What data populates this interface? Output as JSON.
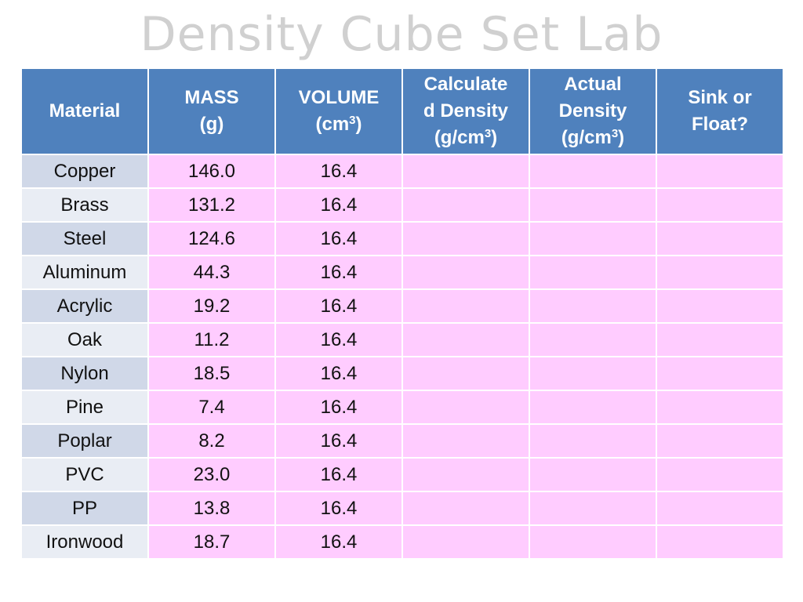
{
  "title": "Density Cube Set Lab",
  "colors": {
    "header_bg": "#4F81BD",
    "header_text": "#FFFFFF",
    "material_dark": "#D0D8E8",
    "material_light": "#E9EDF4",
    "data_cell": "#FFCCFF",
    "title_text": "#D0D0D0"
  },
  "table": {
    "headers": [
      {
        "line1": "Material",
        "line2": "",
        "line3": ""
      },
      {
        "line1": "MASS",
        "line2": "(g)",
        "line3": ""
      },
      {
        "line1": "VOLUME",
        "line2_pre": "(cm",
        "line2_sup": "3",
        "line2_post": ")"
      },
      {
        "line1": "Calculate",
        "line2": "d Density",
        "line3_pre": "(g/cm",
        "line3_sup": "3",
        "line3_post": ")"
      },
      {
        "line1": "Actual",
        "line2": "Density",
        "line3_pre": "(g/cm",
        "line3_sup": "3",
        "line3_post": ")"
      },
      {
        "line1": "Sink or",
        "line2": "Float?"
      }
    ],
    "rows": [
      {
        "material": "Copper",
        "mass": "146.0",
        "volume": "16.4",
        "calculated_density": "",
        "actual_density": "",
        "sink_or_float": ""
      },
      {
        "material": "Brass",
        "mass": "131.2",
        "volume": "16.4",
        "calculated_density": "",
        "actual_density": "",
        "sink_or_float": ""
      },
      {
        "material": "Steel",
        "mass": "124.6",
        "volume": "16.4",
        "calculated_density": "",
        "actual_density": "",
        "sink_or_float": ""
      },
      {
        "material": "Aluminum",
        "mass": "44.3",
        "volume": "16.4",
        "calculated_density": "",
        "actual_density": "",
        "sink_or_float": ""
      },
      {
        "material": "Acrylic",
        "mass": "19.2",
        "volume": "16.4",
        "calculated_density": "",
        "actual_density": "",
        "sink_or_float": ""
      },
      {
        "material": "Oak",
        "mass": "11.2",
        "volume": "16.4",
        "calculated_density": "",
        "actual_density": "",
        "sink_or_float": ""
      },
      {
        "material": "Nylon",
        "mass": "18.5",
        "volume": "16.4",
        "calculated_density": "",
        "actual_density": "",
        "sink_or_float": ""
      },
      {
        "material": "Pine",
        "mass": "7.4",
        "volume": "16.4",
        "calculated_density": "",
        "actual_density": "",
        "sink_or_float": ""
      },
      {
        "material": "Poplar",
        "mass": "8.2",
        "volume": "16.4",
        "calculated_density": "",
        "actual_density": "",
        "sink_or_float": ""
      },
      {
        "material": "PVC",
        "mass": "23.0",
        "volume": "16.4",
        "calculated_density": "",
        "actual_density": "",
        "sink_or_float": ""
      },
      {
        "material": "PP",
        "mass": "13.8",
        "volume": "16.4",
        "calculated_density": "",
        "actual_density": "",
        "sink_or_float": ""
      },
      {
        "material": "Ironwood",
        "mass": "18.7",
        "volume": "16.4",
        "calculated_density": "",
        "actual_density": "",
        "sink_or_float": ""
      }
    ]
  }
}
